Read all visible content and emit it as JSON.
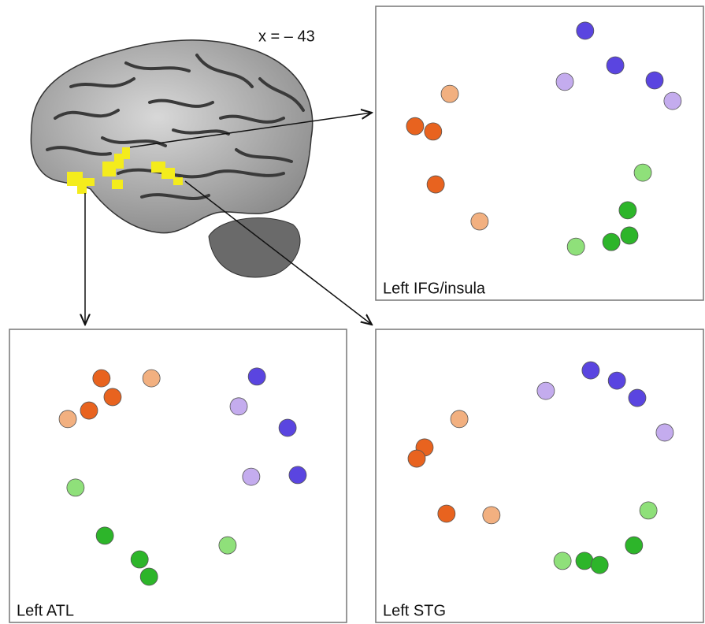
{
  "figure": {
    "annotation": "x = – 43"
  },
  "chart_data": [
    {
      "type": "scatter",
      "title": "Left IFG/insula",
      "xlim": [
        0,
        100
      ],
      "ylim": [
        0,
        100
      ],
      "series": [
        {
          "color": "#5a45e0",
          "x": [
            63.9,
            73.1,
            85.1
          ],
          "values": [
            91.7,
            79.9,
            74.8
          ]
        },
        {
          "color": "#c4acee",
          "x": [
            57.7,
            90.6
          ],
          "values": [
            74.3,
            67.8
          ]
        },
        {
          "color": "#f2b080",
          "x": [
            22.6,
            31.7
          ],
          "values": [
            70.2,
            26.8
          ]
        },
        {
          "color": "#e8631f",
          "x": [
            12.0,
            17.5,
            18.3
          ],
          "values": [
            59.2,
            57.4,
            39.4
          ]
        },
        {
          "color": "#8fe07a",
          "x": [
            81.5,
            61.1
          ],
          "values": [
            43.4,
            18.2
          ]
        },
        {
          "color": "#2db52a",
          "x": [
            76.9,
            71.9,
            77.4
          ],
          "values": [
            30.6,
            19.8,
            22.0
          ]
        }
      ]
    },
    {
      "type": "scatter",
      "title": "Left ATL",
      "xlim": [
        0,
        100
      ],
      "ylim": [
        0,
        100
      ],
      "series": [
        {
          "color": "#5a45e0",
          "x": [
            73.4,
            82.5,
            85.5
          ],
          "values": [
            83.9,
            66.4,
            50.3
          ]
        },
        {
          "color": "#c4acee",
          "x": [
            68.0,
            71.7
          ],
          "values": [
            73.7,
            49.7
          ]
        },
        {
          "color": "#f2b080",
          "x": [
            42.1,
            17.3
          ],
          "values": [
            83.3,
            69.4
          ]
        },
        {
          "color": "#e8631f",
          "x": [
            27.3,
            30.6,
            23.6
          ],
          "values": [
            83.3,
            76.9,
            72.3
          ]
        },
        {
          "color": "#8fe07a",
          "x": [
            19.6,
            64.7
          ],
          "values": [
            46.0,
            26.3
          ]
        },
        {
          "color": "#2db52a",
          "x": [
            28.3,
            38.6,
            41.4
          ],
          "values": [
            29.6,
            21.5,
            15.6
          ]
        }
      ]
    },
    {
      "type": "scatter",
      "title": "Left STG",
      "xlim": [
        0,
        100
      ],
      "ylim": [
        0,
        100
      ],
      "series": [
        {
          "color": "#5a45e0",
          "x": [
            65.6,
            73.6,
            79.8
          ],
          "values": [
            86.0,
            82.5,
            76.6
          ]
        },
        {
          "color": "#c4acee",
          "x": [
            51.9,
            88.2
          ],
          "values": [
            79.0,
            64.8
          ]
        },
        {
          "color": "#f2b080",
          "x": [
            25.5,
            35.3
          ],
          "values": [
            69.4,
            36.6
          ]
        },
        {
          "color": "#e8631f",
          "x": [
            14.9,
            12.5,
            21.6
          ],
          "values": [
            59.7,
            55.9,
            37.1
          ]
        },
        {
          "color": "#8fe07a",
          "x": [
            83.2,
            57.0
          ],
          "values": [
            38.2,
            21.0
          ]
        },
        {
          "color": "#2db52a",
          "x": [
            78.8,
            63.7,
            68.3
          ],
          "values": [
            26.3,
            21.0,
            19.6
          ]
        }
      ]
    }
  ]
}
